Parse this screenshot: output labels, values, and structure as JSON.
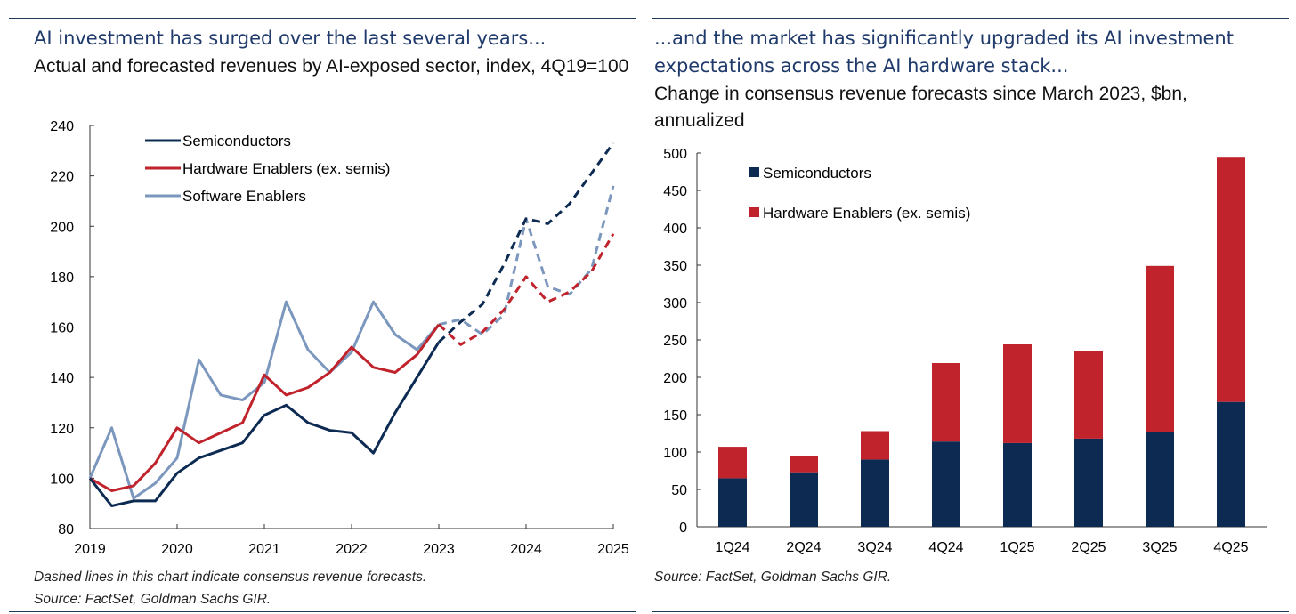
{
  "left": {
    "headline": "AI investment has surged over the last several years...",
    "subtitle": "Actual and forecasted revenues by AI-exposed sector, index, 4Q19=100",
    "footnote": "Dashed lines in this chart indicate consensus revenue forecasts.",
    "source": "Source: FactSet, Goldman Sachs GIR."
  },
  "right": {
    "headline": "...and the market has significantly upgraded its AI investment expectations across the AI hardware stack...",
    "subtitle": "Change in consensus revenue forecasts since March 2023, $bn, annualized",
    "source": "Source: FactSet, Goldman Sachs GIR."
  },
  "chart_data": [
    {
      "type": "line",
      "title": "Actual and forecasted revenues by AI-exposed sector, index, 4Q19=100",
      "xlim": [
        2019,
        2025
      ],
      "ylim": [
        80,
        240
      ],
      "x_ticks": [
        2019,
        2020,
        2021,
        2022,
        2023,
        2024,
        2025
      ],
      "y_ticks": [
        80,
        100,
        120,
        140,
        160,
        180,
        200,
        220,
        240
      ],
      "grid": false,
      "legend_position": "top-left",
      "forecast_start": 2023,
      "series": [
        {
          "name": "Semiconductors",
          "color": "#0d2b52",
          "x": [
            2019,
            2019.25,
            2019.5,
            2019.75,
            2020,
            2020.25,
            2020.5,
            2020.75,
            2021,
            2021.25,
            2021.5,
            2021.75,
            2022,
            2022.25,
            2022.5,
            2022.75,
            2023,
            2023.25,
            2023.5,
            2023.75,
            2024,
            2024.25,
            2024.5,
            2024.75,
            2025
          ],
          "y": [
            100,
            89,
            91,
            91,
            102,
            108,
            111,
            114,
            125,
            129,
            122,
            119,
            118,
            110,
            126,
            140,
            154,
            162,
            169,
            185,
            203,
            201,
            209,
            221,
            233
          ]
        },
        {
          "name": "Hardware Enablers (ex. semis)",
          "color": "#c0232c",
          "x": [
            2019,
            2019.25,
            2019.5,
            2019.75,
            2020,
            2020.25,
            2020.5,
            2020.75,
            2021,
            2021.25,
            2021.5,
            2021.75,
            2022,
            2022.25,
            2022.5,
            2022.75,
            2023,
            2023.25,
            2023.5,
            2023.75,
            2024,
            2024.25,
            2024.5,
            2024.75,
            2025
          ],
          "y": [
            100,
            95,
            97,
            106,
            120,
            114,
            118,
            122,
            141,
            133,
            136,
            142,
            152,
            144,
            142,
            149,
            161,
            153,
            158,
            167,
            180,
            170,
            174,
            182,
            197
          ]
        },
        {
          "name": "Software Enablers",
          "color": "#7b97bd",
          "x": [
            2019,
            2019.25,
            2019.5,
            2019.75,
            2020,
            2020.25,
            2020.5,
            2020.75,
            2021,
            2021.25,
            2021.5,
            2021.75,
            2022,
            2022.25,
            2022.5,
            2022.75,
            2023,
            2023.25,
            2023.5,
            2023.75,
            2024,
            2024.25,
            2024.5,
            2024.75,
            2025
          ],
          "y": [
            100,
            120,
            92,
            98,
            108,
            147,
            133,
            131,
            138,
            170,
            151,
            142,
            150,
            170,
            157,
            151,
            161,
            163,
            157,
            165,
            203,
            176,
            173,
            183,
            216
          ]
        }
      ]
    },
    {
      "type": "bar",
      "stacked": true,
      "title": "Change in consensus revenue forecasts since March 2023, $bn, annualized",
      "categories": [
        "1Q24",
        "2Q24",
        "3Q24",
        "4Q24",
        "1Q25",
        "2Q25",
        "3Q25",
        "4Q25"
      ],
      "ylim": [
        0,
        500
      ],
      "y_ticks": [
        0,
        50,
        100,
        150,
        200,
        250,
        300,
        350,
        400,
        450,
        500
      ],
      "grid": false,
      "legend_position": "top-left",
      "series": [
        {
          "name": "Semiconductors",
          "color": "#0d2b52",
          "values": [
            65,
            73,
            90,
            114,
            112,
            118,
            127,
            167
          ]
        },
        {
          "name": "Hardware Enablers (ex. semis)",
          "color": "#c0232c",
          "values": [
            42,
            22,
            38,
            105,
            132,
            117,
            222,
            328
          ]
        }
      ]
    }
  ]
}
